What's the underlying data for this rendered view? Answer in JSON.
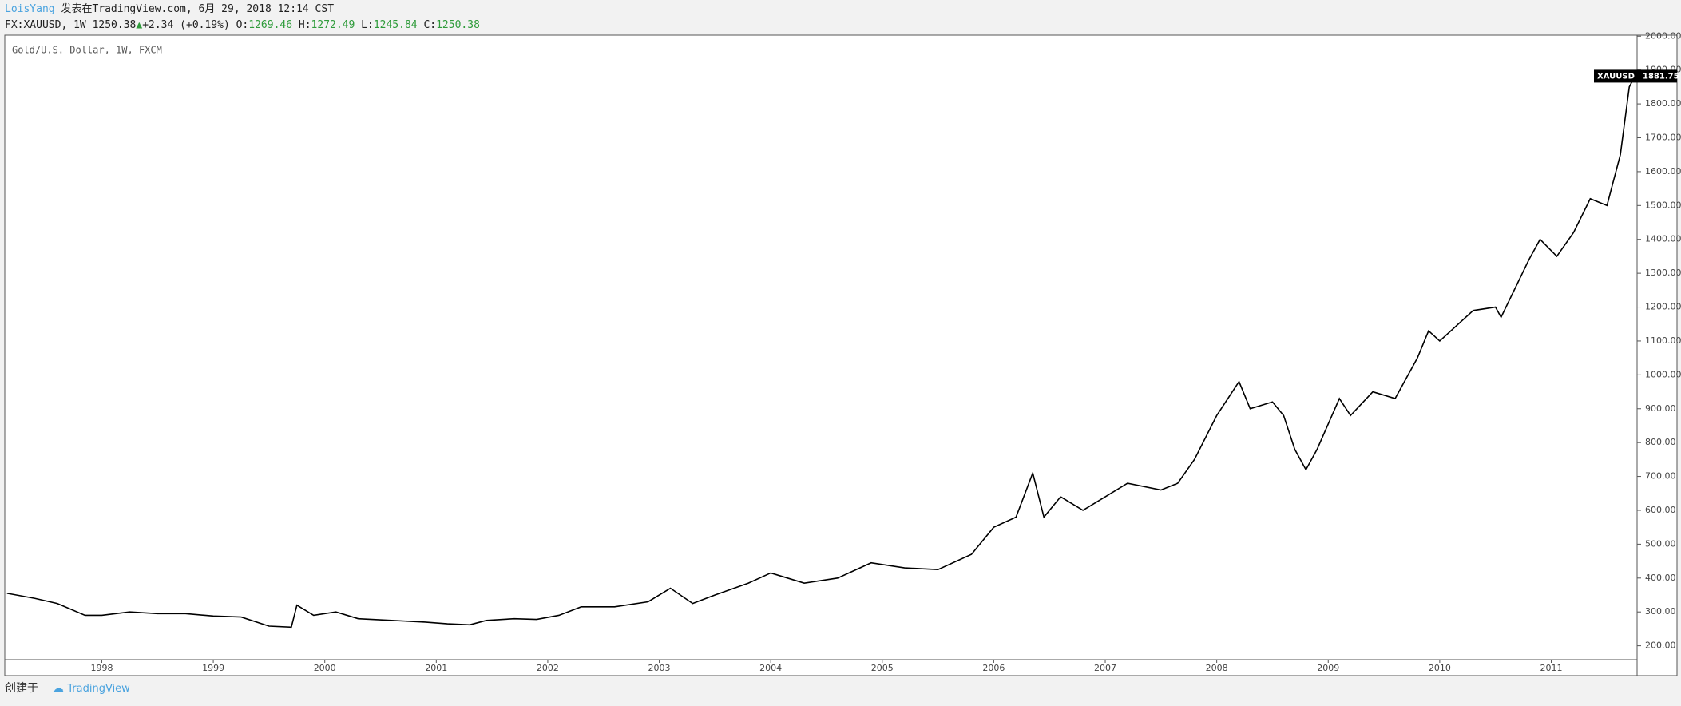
{
  "header": {
    "author": "LoisYang",
    "published": "发表在TradingView.com, 6月 29, 2018 12:14 CST",
    "symbol": "FX:XAUUSD, 1W",
    "last": "1250.38",
    "change": "+2.34 (+0.19%)",
    "ohlc": [
      [
        "O:",
        "1269.46"
      ],
      [
        "H:",
        "1272.49"
      ],
      [
        "L:",
        "1245.84"
      ],
      [
        "C:",
        "1250.38"
      ]
    ]
  },
  "footer": {
    "created_with": "创建于",
    "brand": "TradingView"
  },
  "chart_data": {
    "type": "line",
    "title": "Gold/U.S. Dollar, 1W, FXCM",
    "price_tag_name": "XAUUSD",
    "x": [
      1997.15,
      1997.4,
      1997.6,
      1997.85,
      1998.0,
      1998.25,
      1998.5,
      1998.75,
      1999.0,
      1999.25,
      1999.5,
      1999.7,
      1999.75,
      1999.9,
      2000.1,
      2000.3,
      2000.6,
      2000.9,
      2001.1,
      2001.3,
      2001.45,
      2001.7,
      2001.9,
      2002.1,
      2002.3,
      2002.6,
      2002.9,
      2003.1,
      2003.3,
      2003.5,
      2003.8,
      2004.0,
      2004.1,
      2004.3,
      2004.6,
      2004.9,
      2005.2,
      2005.5,
      2005.8,
      2006.0,
      2006.2,
      2006.35,
      2006.45,
      2006.6,
      2006.8,
      2007.0,
      2007.2,
      2007.5,
      2007.65,
      2007.8,
      2008.0,
      2008.2,
      2008.3,
      2008.5,
      2008.6,
      2008.7,
      2008.8,
      2008.9,
      2009.1,
      2009.2,
      2009.4,
      2009.6,
      2009.8,
      2009.9,
      2010.0,
      2010.3,
      2010.5,
      2010.55,
      2010.8,
      2010.9,
      2011.05,
      2011.2,
      2011.35,
      2011.5,
      2011.62,
      2011.7,
      2011.75
    ],
    "series": [
      {
        "name": "XAUUSD",
        "color": "#000000",
        "values": [
          355,
          340,
          325,
          290,
          290,
          300,
          295,
          295,
          288,
          285,
          258,
          255,
          320,
          290,
          300,
          280,
          275,
          270,
          265,
          262,
          275,
          280,
          278,
          290,
          315,
          315,
          330,
          370,
          325,
          350,
          385,
          415,
          405,
          385,
          400,
          445,
          430,
          425,
          470,
          550,
          580,
          710,
          580,
          640,
          600,
          640,
          680,
          660,
          680,
          750,
          880,
          980,
          900,
          920,
          880,
          780,
          720,
          780,
          930,
          880,
          950,
          930,
          1050,
          1130,
          1100,
          1190,
          1200,
          1170,
          1340,
          1400,
          1350,
          1420,
          1520,
          1500,
          1650,
          1850,
          1881.75
        ]
      }
    ],
    "xlim": [
      1997.13,
      2011.77
    ],
    "ylim": [
      159,
      2003
    ],
    "xticks": [
      1998,
      1999,
      2000,
      2001,
      2002,
      2003,
      2004,
      2005,
      2006,
      2007,
      2008,
      2009,
      2010,
      2011
    ],
    "yticks": [
      {
        "value": 200,
        "label": "200.00"
      },
      {
        "value": 300,
        "label": "300.00"
      },
      {
        "value": 400,
        "label": "400.00"
      },
      {
        "value": 500,
        "label": "500.00"
      },
      {
        "value": 600,
        "label": "600.00"
      },
      {
        "value": 700,
        "label": "700.00"
      },
      {
        "value": 800,
        "label": "800.00"
      },
      {
        "value": 900,
        "label": "900.00"
      },
      {
        "value": 1000,
        "label": "1000.00"
      },
      {
        "value": 1100,
        "label": "1100.00"
      },
      {
        "value": 1200,
        "label": "1200.00"
      },
      {
        "value": 1300,
        "label": "1300.00"
      },
      {
        "value": 1400,
        "label": "1400.00"
      },
      {
        "value": 1500,
        "label": "1500.00"
      },
      {
        "value": 1600,
        "label": "1600.00"
      },
      {
        "value": 1700,
        "label": "1700.00"
      },
      {
        "value": 1800,
        "label": "1800.00"
      },
      {
        "value": 1900,
        "label": "1900.00"
      },
      {
        "value": 2000,
        "label": "2000.00"
      }
    ]
  }
}
